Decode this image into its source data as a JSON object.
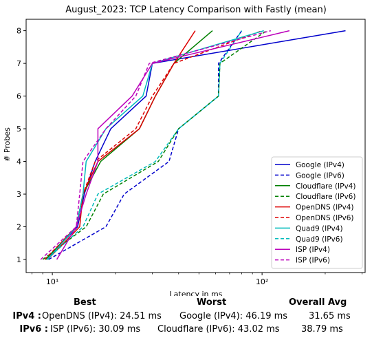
{
  "chart_data": {
    "type": "line",
    "title": "August_2023: TCP Latency Comparison with Fastly (mean)",
    "xlabel": "Latency in ms",
    "ylabel": "# Probes",
    "xscale": "log",
    "xlim": [
      7.5,
      310
    ],
    "ylim": [
      0.6,
      8.35
    ],
    "xticks": [
      10,
      100
    ],
    "xtick_labels": [
      "10¹",
      "10²"
    ],
    "yticks": [
      1,
      2,
      3,
      4,
      5,
      6,
      7,
      8
    ],
    "ytick_labels": [
      "1",
      "2",
      "3",
      "4",
      "5",
      "6",
      "7",
      "8"
    ],
    "grid": false,
    "legend": "lower-right",
    "series": [
      {
        "name": "Google (IPv4)",
        "color": "#0000cc",
        "dash": "solid",
        "x": [
          9.3,
          13.2,
          14.2,
          16.0,
          19.0,
          28.0,
          30.0,
          250.0
        ],
        "y": [
          1,
          2,
          3,
          4,
          5,
          6,
          7,
          8
        ]
      },
      {
        "name": "Google (IPv6)",
        "color": "#0000cc",
        "dash": "dashed",
        "x": [
          9.6,
          18.0,
          22.0,
          36.0,
          40.0,
          62.0,
          62.0,
          80.0
        ],
        "y": [
          1,
          2,
          3,
          4,
          5,
          6,
          7,
          8
        ]
      },
      {
        "name": "Cloudflare (IPv4)",
        "color": "#008000",
        "dash": "solid",
        "x": [
          9.3,
          13.0,
          14.0,
          17.0,
          26.0,
          31.0,
          38.0,
          58.0
        ],
        "y": [
          1,
          2,
          3,
          4,
          5,
          6,
          7,
          8
        ]
      },
      {
        "name": "Cloudflare (IPv6)",
        "color": "#008000",
        "dash": "dashed",
        "x": [
          9.0,
          14.5,
          17.5,
          32.0,
          40.0,
          62.0,
          63.0,
          105.0
        ],
        "y": [
          1,
          2,
          3,
          4,
          5,
          6,
          7,
          8
        ]
      },
      {
        "name": "OpenDNS (IPv4)",
        "color": "#dd0000",
        "dash": "solid",
        "x": [
          9.5,
          13.5,
          14.0,
          16.5,
          26.0,
          31.0,
          38.0,
          48.0
        ],
        "y": [
          1,
          2,
          3,
          4,
          5,
          6,
          7,
          8
        ]
      },
      {
        "name": "OpenDNS (IPv6)",
        "color": "#dd0000",
        "dash": "dashed",
        "x": [
          9.2,
          13.0,
          14.0,
          16.0,
          25.0,
          30.0,
          38.0,
          100.0
        ],
        "y": [
          1,
          2,
          3,
          4,
          5,
          6,
          7,
          8
        ]
      },
      {
        "name": "Quad9 (IPv4)",
        "color": "#00bbbb",
        "dash": "solid",
        "x": [
          9.5,
          13.0,
          14.0,
          14.5,
          18.0,
          27.0,
          30.0,
          102.0
        ],
        "y": [
          1,
          2,
          3,
          4,
          5,
          6,
          7,
          8
        ]
      },
      {
        "name": "Quad9 (IPv6)",
        "color": "#00bbbb",
        "dash": "dashed",
        "x": [
          9.4,
          14.0,
          16.5,
          31.0,
          40.0,
          62.0,
          63.0,
          80.0
        ],
        "y": [
          1,
          2,
          3,
          4,
          5,
          6,
          7,
          8
        ]
      },
      {
        "name": "ISP (IPv4)",
        "color": "#bb00bb",
        "dash": "solid",
        "x": [
          10.5,
          13.0,
          14.5,
          16.5,
          16.5,
          24.0,
          30.0,
          135.0
        ],
        "y": [
          1,
          2,
          3,
          4,
          5,
          6,
          7,
          8
        ]
      },
      {
        "name": "ISP (IPv6)",
        "color": "#bb00bb",
        "dash": "dashed",
        "x": [
          8.8,
          13.0,
          13.5,
          14.0,
          18.0,
          25.0,
          29.0,
          110.0
        ],
        "y": [
          1,
          2,
          3,
          4,
          5,
          6,
          7,
          8
        ]
      }
    ]
  },
  "summary": {
    "headers": {
      "best": "Best",
      "worst": "Worst",
      "avg": "Overall Avg"
    },
    "rows": [
      {
        "label": "IPv4 :",
        "best": "OpenDNS (IPv4): 24.51 ms",
        "worst": "Google (IPv4): 46.19 ms",
        "avg": "31.65 ms"
      },
      {
        "label": "IPv6 :",
        "best": "ISP (IPv6): 30.09 ms",
        "worst": "Cloudflare (IPv6): 43.02 ms",
        "avg": "38.79 ms"
      }
    ]
  }
}
